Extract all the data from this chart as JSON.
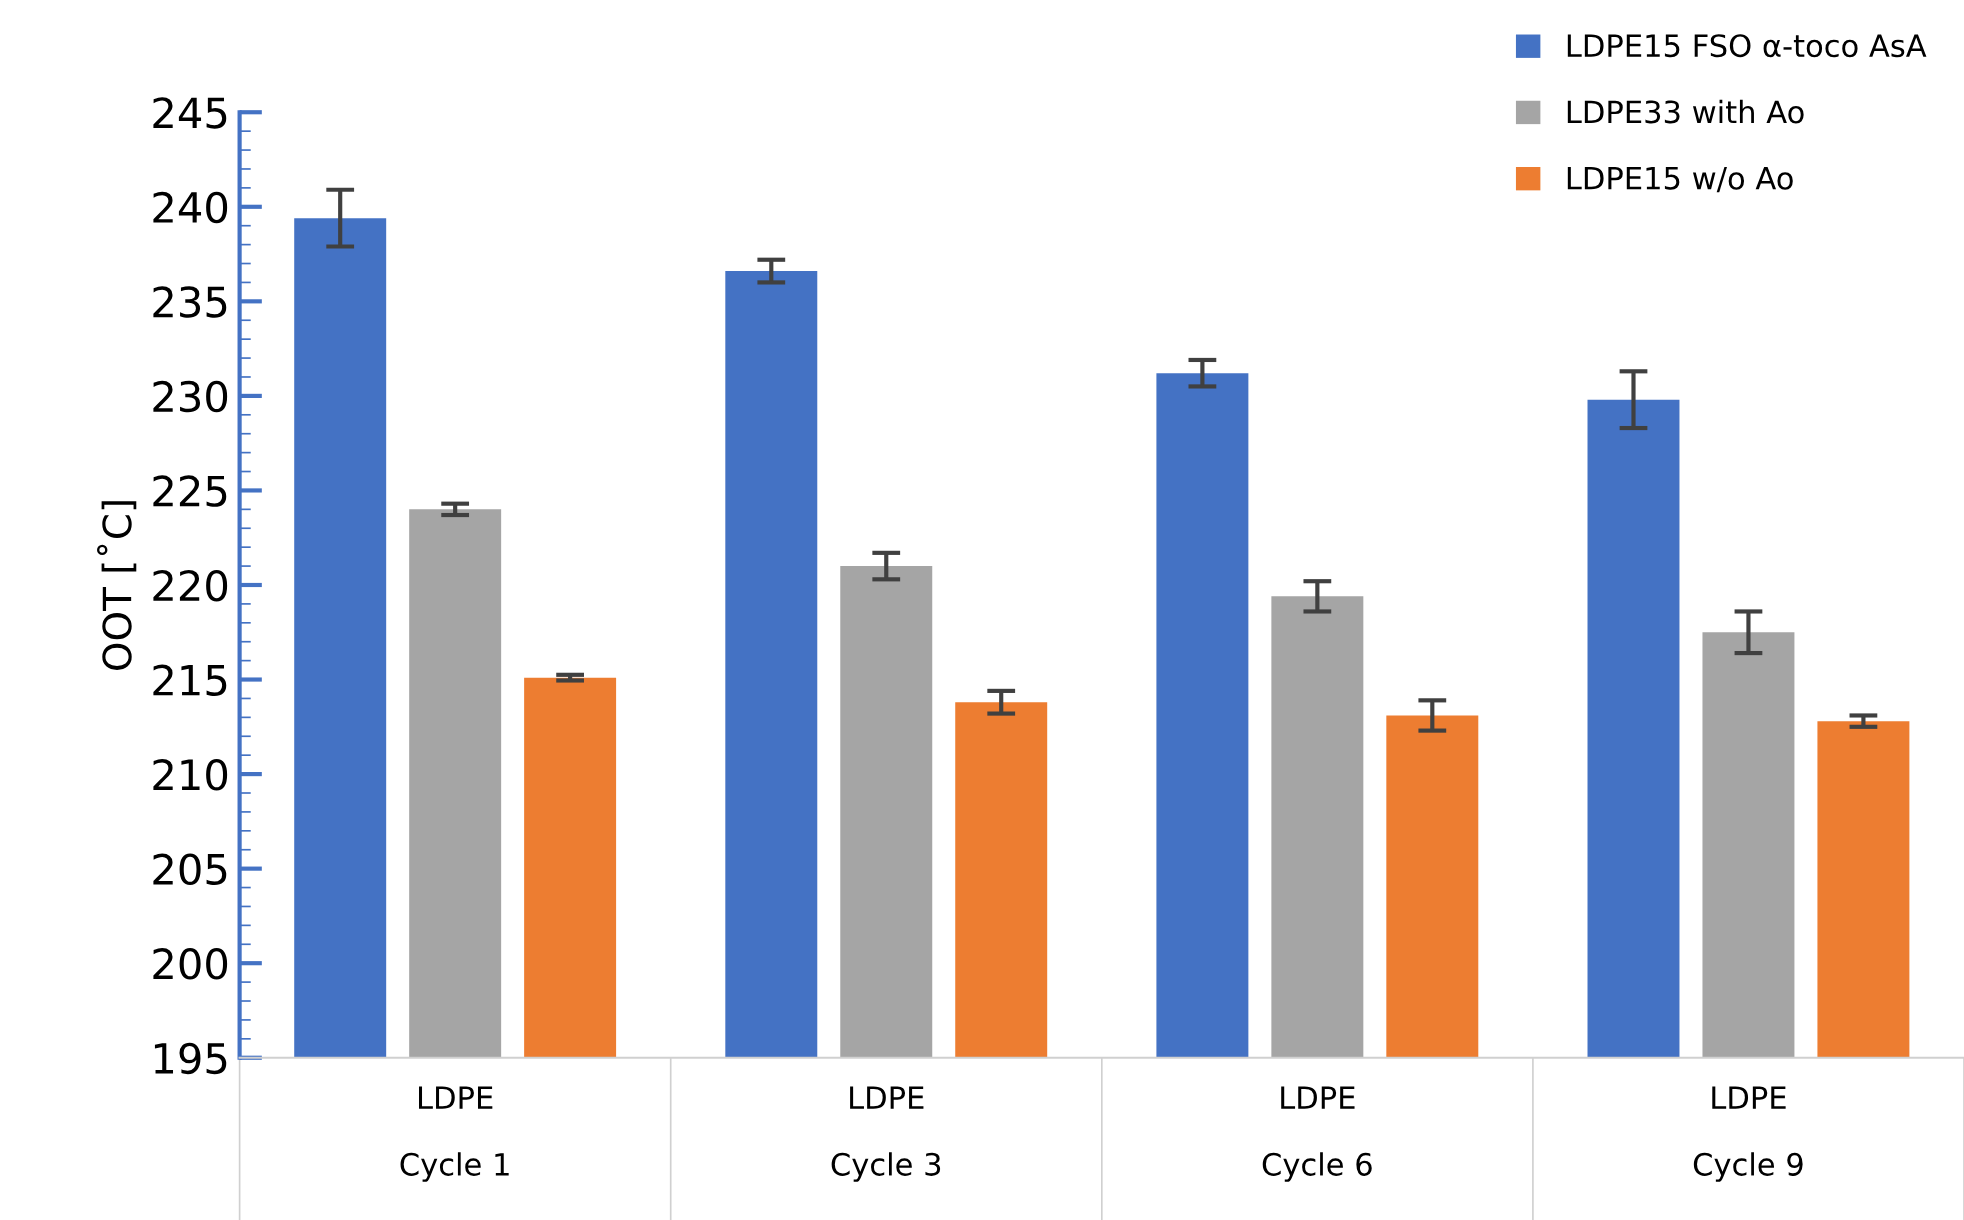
{
  "chart_data": {
    "type": "bar",
    "ylabel": "OOT [˚C]",
    "categories": [
      "LDPE\nCycle 1",
      "LDPE\nCycle 3",
      "LDPE\nCycle 6",
      "LDPE\nCycle 9"
    ],
    "series": [
      {
        "name": "LDPE15 FSO α-toco AsA",
        "color": "#4472c4",
        "values": [
          239.4,
          236.6,
          231.2,
          229.8
        ],
        "errors": [
          1.5,
          0.6,
          0.7,
          1.5
        ]
      },
      {
        "name": "LDPE33 with Ao",
        "color": "#a5a5a5",
        "values": [
          224.0,
          221.0,
          219.4,
          217.5
        ],
        "errors": [
          0.3,
          0.7,
          0.8,
          1.1
        ]
      },
      {
        "name": "LDPE15 w/o Ao",
        "color": "#ed7d31",
        "values": [
          215.1,
          213.8,
          213.1,
          212.8
        ],
        "errors": [
          0.15,
          0.6,
          0.8,
          0.3
        ]
      }
    ],
    "ylim": [
      195,
      245
    ],
    "yticks": [
      195,
      200,
      205,
      210,
      215,
      220,
      225,
      230,
      235,
      240,
      245
    ],
    "grid": false,
    "legend": "top right"
  }
}
